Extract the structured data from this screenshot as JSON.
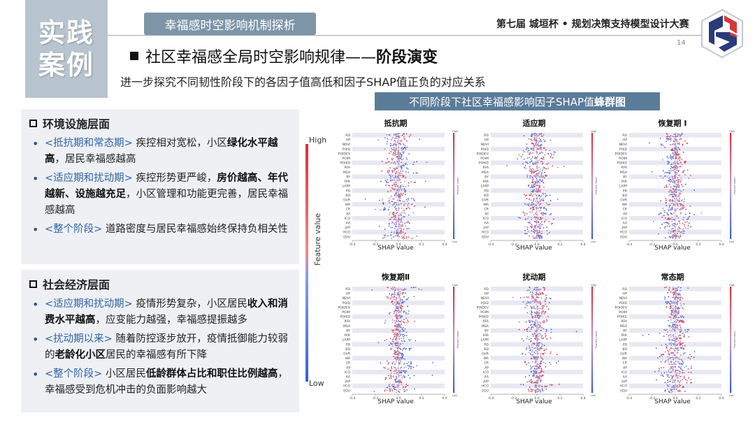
{
  "badge": {
    "line1": "实践",
    "line2": "案例"
  },
  "header": {
    "section": "幸福感时空影响机制探析",
    "contest": "第七届 城垣杯 • 规划决策支持模型设计大赛",
    "page_number": "14"
  },
  "heading": {
    "prefix": "社区幸福感全局时空影响规律——",
    "emphasis": "阶段演变",
    "subheading": "进一步探究不同韧性阶段下的各因子值高低和因子SHAP值正负的对应关系"
  },
  "panel_env": {
    "title": "环境设施层面",
    "items": [
      {
        "tag": "<抵抗期和常态期>",
        "pre": " 疾控相对宽松，小区",
        "bold": "绿化水平越高",
        "post": "，居民幸福感越高"
      },
      {
        "tag": "<适应期和扰动期>",
        "pre": " 疾控形势更严峻，",
        "bold": "房价越高、年代越新、设施越充足",
        "post": "，小区管理和功能更完善，居民幸福感越高"
      },
      {
        "tag": "<整个阶段>",
        "pre": " 道路密度与居民幸福感始终保持负相关性",
        "bold": "",
        "post": ""
      }
    ]
  },
  "panel_soc": {
    "title": "社会经济层面",
    "items": [
      {
        "tag": "<适应期和扰动期>",
        "pre": " 疫情形势复杂，小区居民",
        "bold": "收入和消费水平越高",
        "post": "，应变能力越强，幸福感提振越多"
      },
      {
        "tag": "<扰动期以来>",
        "pre": " 随着防控逐步放开，疫情抵御能力较弱的",
        "bold": "老龄化小区",
        "post": "居民的幸福感有所下降"
      },
      {
        "tag": "<整个阶段>",
        "pre": " 小区居民",
        "bold": "低龄群体占比和职住比例越高",
        "post": "，幸福感受到危机冲击的负面影响越大"
      }
    ]
  },
  "chart_header": {
    "pre": "不同阶段下社区幸福感影响因子SHAP值",
    "bold": "蜂群图"
  },
  "legend": {
    "high": "High",
    "low": "Low",
    "axis": "Feature value",
    "small_high": "High",
    "small_low": "Low",
    "small_axis": "Feature value"
  },
  "chart_data": [
    {
      "type": "scatter",
      "title": "抵抗期",
      "xlabel": "SHAP value",
      "xticks": [
        "-0.4",
        "-0.2",
        "0.0",
        "0.2",
        "0.4"
      ],
      "features": [
        "RD",
        "HP",
        "NDVI",
        "POID",
        "POIDEV",
        "POIM",
        "POIKD",
        "RFA",
        "MSA",
        "BY",
        "FAR",
        "LAPP",
        "PD",
        "BD",
        "GVR",
        "WA",
        "CR",
        "AP",
        "ICO",
        "AA",
        "JHP",
        "HCO",
        "EDU"
      ]
    },
    {
      "type": "scatter",
      "title": "适应期",
      "xlabel": "SHAP value",
      "xticks": [
        "-0.4",
        "-0.2",
        "0.0",
        "0.2",
        "0.4"
      ],
      "features": [
        "RD",
        "HP",
        "NDVI",
        "POID",
        "POIDEV",
        "POIM",
        "POIKD",
        "RFA",
        "MSA",
        "BY",
        "FAR",
        "LAPP",
        "PD",
        "BD",
        "GVR",
        "WA",
        "CR",
        "AP",
        "ICO",
        "AA",
        "JHP",
        "HCO",
        "EDU"
      ]
    },
    {
      "type": "scatter",
      "title": "恢复期 I",
      "xlabel": "SHAP value",
      "xticks": [
        "-0.4",
        "-0.2",
        "0.0",
        "0.2",
        "0.4"
      ],
      "features": [
        "RD",
        "HP",
        "NDVI",
        "POID",
        "POIDEV",
        "POIM",
        "POIKD",
        "RFA",
        "MSA",
        "BY",
        "FAR",
        "LAPP",
        "PD",
        "BD",
        "GVR",
        "WA",
        "CR",
        "AP",
        "ICO",
        "AA",
        "JHP",
        "HCO",
        "EDU"
      ]
    },
    {
      "type": "scatter",
      "title": "恢复期Ⅱ",
      "xlabel": "SHAP value",
      "xticks": [
        "-0.4",
        "-0.2",
        "0.0",
        "0.2",
        "0.4"
      ],
      "features": [
        "RD",
        "HP",
        "NDVI",
        "POID",
        "POIDEV",
        "POIM",
        "POIKD",
        "RFA",
        "MSA",
        "BY",
        "FAR",
        "LAPP",
        "PD",
        "BD",
        "GVR",
        "WA",
        "CR",
        "AP",
        "ICO",
        "AA",
        "JHP",
        "HCO",
        "EDU"
      ]
    },
    {
      "type": "scatter",
      "title": "扰动期",
      "xlabel": "SHAP value",
      "xticks": [
        "-0.4",
        "-0.2",
        "0.0",
        "0.2",
        "0.4"
      ],
      "features": [
        "RD",
        "HP",
        "NDVI",
        "POID",
        "POIDEV",
        "POIM",
        "POIKD",
        "RFA",
        "MSA",
        "BY",
        "FAR",
        "LAPP",
        "PD",
        "BD",
        "GVR",
        "WA",
        "CR",
        "AP",
        "ICO",
        "AA",
        "JHP",
        "HCO",
        "EDU"
      ]
    },
    {
      "type": "scatter",
      "title": "常态期",
      "xlabel": "SHAP value",
      "xticks": [
        "-0.4",
        "-0.2",
        "0.0",
        "0.2",
        "0.4"
      ],
      "features": [
        "RD",
        "HP",
        "NDVI",
        "POID",
        "POIDEV",
        "POIM",
        "POIKD",
        "RFA",
        "MSA",
        "BY",
        "FAR",
        "LAPP",
        "PD",
        "BD",
        "GVR",
        "WA",
        "CR",
        "AP",
        "ICO",
        "AA",
        "JHP",
        "HCO",
        "EDU"
      ]
    }
  ],
  "colors": {
    "high": "#d62f3c",
    "low": "#3a5fd8",
    "accent": "#2f63a8",
    "pill": "#7e95a8",
    "chart_header": "#5a7c99"
  }
}
